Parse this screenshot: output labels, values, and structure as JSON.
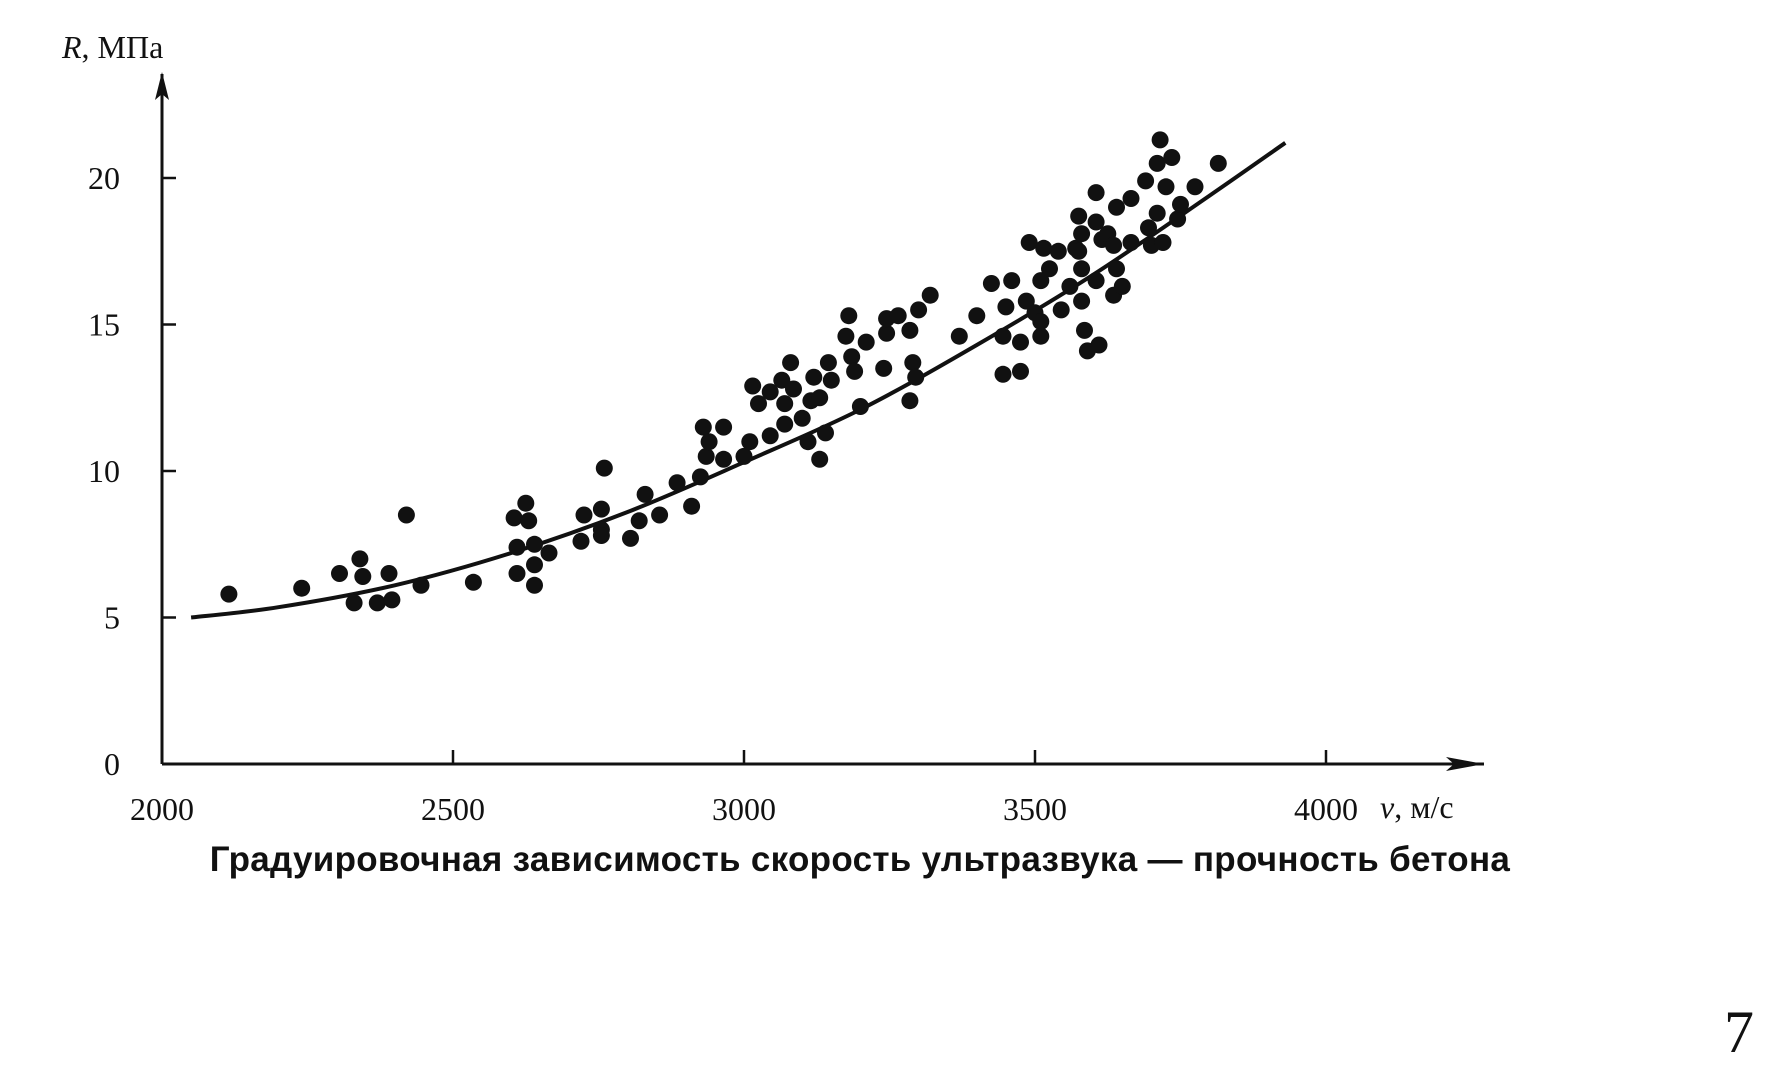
{
  "caption": "Градуировочная зависимость скорость ультразвука — прочность бетона",
  "page_number": "7",
  "chart_data": {
    "type": "scatter",
    "title": "",
    "xlabel": {
      "var": "v",
      "unit": ", м/с"
    },
    "ylabel": {
      "var": "R",
      "unit": ", МПа"
    },
    "xlim": [
      2000,
      4250
    ],
    "ylim": [
      0,
      23
    ],
    "xticks": [
      2000,
      2500,
      3000,
      3500,
      4000
    ],
    "yticks": [
      0,
      5,
      10,
      15,
      20
    ],
    "grid": false,
    "legend": "none",
    "series": [
      {
        "kind": "points",
        "points": [
          [
            2115,
            5.8
          ],
          [
            2240,
            6.0
          ],
          [
            2305,
            6.5
          ],
          [
            2340,
            7.0
          ],
          [
            2345,
            6.4
          ],
          [
            2330,
            5.5
          ],
          [
            2370,
            5.5
          ],
          [
            2390,
            6.5
          ],
          [
            2395,
            5.6
          ],
          [
            2420,
            8.5
          ],
          [
            2445,
            6.1
          ],
          [
            2535,
            6.2
          ],
          [
            2605,
            8.4
          ],
          [
            2610,
            7.4
          ],
          [
            2610,
            6.5
          ],
          [
            2625,
            8.9
          ],
          [
            2630,
            8.3
          ],
          [
            2640,
            7.5
          ],
          [
            2640,
            6.8
          ],
          [
            2640,
            6.1
          ],
          [
            2665,
            7.2
          ],
          [
            2720,
            7.6
          ],
          [
            2725,
            8.5
          ],
          [
            2755,
            8.0
          ],
          [
            2755,
            8.7
          ],
          [
            2760,
            10.1
          ],
          [
            2755,
            7.8
          ],
          [
            2805,
            7.7
          ],
          [
            2820,
            8.3
          ],
          [
            2830,
            9.2
          ],
          [
            2855,
            8.5
          ],
          [
            2885,
            9.6
          ],
          [
            2910,
            8.8
          ],
          [
            2925,
            9.8
          ],
          [
            2930,
            11.5
          ],
          [
            2935,
            10.5
          ],
          [
            2940,
            11.0
          ],
          [
            2965,
            11.5
          ],
          [
            2965,
            10.4
          ],
          [
            3000,
            10.5
          ],
          [
            3010,
            11.0
          ],
          [
            3015,
            12.9
          ],
          [
            3025,
            12.3
          ],
          [
            3045,
            12.7
          ],
          [
            3045,
            11.2
          ],
          [
            3065,
            13.1
          ],
          [
            3070,
            12.3
          ],
          [
            3070,
            11.6
          ],
          [
            3080,
            13.7
          ],
          [
            3085,
            12.8
          ],
          [
            3100,
            11.8
          ],
          [
            3110,
            11.0
          ],
          [
            3115,
            12.4
          ],
          [
            3120,
            13.2
          ],
          [
            3130,
            12.5
          ],
          [
            3130,
            10.4
          ],
          [
            3140,
            11.3
          ],
          [
            3145,
            13.7
          ],
          [
            3150,
            13.1
          ],
          [
            3175,
            14.6
          ],
          [
            3180,
            15.3
          ],
          [
            3185,
            13.9
          ],
          [
            3190,
            13.4
          ],
          [
            3200,
            12.2
          ],
          [
            3210,
            14.4
          ],
          [
            3240,
            13.5
          ],
          [
            3245,
            14.7
          ],
          [
            3245,
            15.2
          ],
          [
            3265,
            15.3
          ],
          [
            3285,
            14.8
          ],
          [
            3285,
            12.4
          ],
          [
            3290,
            13.7
          ],
          [
            3295,
            13.2
          ],
          [
            3300,
            15.5
          ],
          [
            3320,
            16.0
          ],
          [
            3370,
            14.6
          ],
          [
            3400,
            15.3
          ],
          [
            3425,
            16.4
          ],
          [
            3445,
            14.6
          ],
          [
            3445,
            13.3
          ],
          [
            3450,
            15.6
          ],
          [
            3460,
            16.5
          ],
          [
            3475,
            13.4
          ],
          [
            3475,
            14.4
          ],
          [
            3485,
            15.8
          ],
          [
            3490,
            17.8
          ],
          [
            3500,
            15.4
          ],
          [
            3510,
            14.6
          ],
          [
            3510,
            15.1
          ],
          [
            3510,
            16.5
          ],
          [
            3515,
            17.6
          ],
          [
            3525,
            16.9
          ],
          [
            3540,
            17.5
          ],
          [
            3545,
            15.5
          ],
          [
            3560,
            16.3
          ],
          [
            3570,
            17.6
          ],
          [
            3575,
            18.7
          ],
          [
            3575,
            17.5
          ],
          [
            3580,
            16.9
          ],
          [
            3580,
            15.8
          ],
          [
            3580,
            18.1
          ],
          [
            3585,
            14.8
          ],
          [
            3590,
            14.1
          ],
          [
            3605,
            19.5
          ],
          [
            3605,
            18.5
          ],
          [
            3605,
            16.5
          ],
          [
            3610,
            14.3
          ],
          [
            3615,
            17.9
          ],
          [
            3625,
            18.1
          ],
          [
            3635,
            16.0
          ],
          [
            3635,
            17.7
          ],
          [
            3640,
            19.0
          ],
          [
            3640,
            16.9
          ],
          [
            3650,
            16.3
          ],
          [
            3665,
            19.3
          ],
          [
            3665,
            17.8
          ],
          [
            3690,
            19.9
          ],
          [
            3695,
            18.3
          ],
          [
            3700,
            17.7
          ],
          [
            3710,
            20.5
          ],
          [
            3710,
            18.8
          ],
          [
            3715,
            21.3
          ],
          [
            3720,
            17.8
          ],
          [
            3725,
            19.7
          ],
          [
            3735,
            20.7
          ],
          [
            3745,
            18.6
          ],
          [
            3750,
            19.1
          ],
          [
            3775,
            19.7
          ],
          [
            3815,
            20.5
          ]
        ]
      },
      {
        "kind": "trend",
        "points": [
          [
            2050,
            5.0
          ],
          [
            2200,
            5.35
          ],
          [
            2400,
            6.1
          ],
          [
            2600,
            7.2
          ],
          [
            2800,
            8.6
          ],
          [
            3000,
            10.3
          ],
          [
            3200,
            12.1
          ],
          [
            3400,
            14.3
          ],
          [
            3600,
            16.7
          ],
          [
            3800,
            19.4
          ],
          [
            3930,
            21.2
          ]
        ]
      }
    ]
  }
}
